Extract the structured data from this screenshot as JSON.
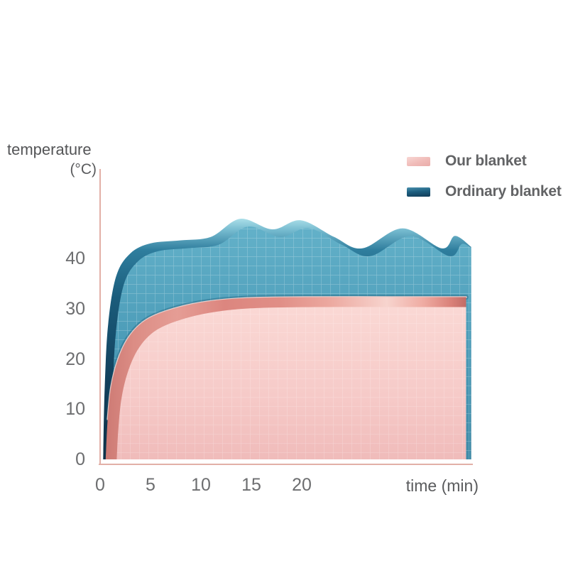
{
  "axes": {
    "y": {
      "title": "temperature",
      "unit": "(°C)",
      "ticks": [
        0,
        10,
        20,
        30,
        40
      ]
    },
    "x": {
      "label": "time (min)",
      "ticks": [
        0,
        5,
        10,
        15,
        20
      ]
    }
  },
  "legend": {
    "items": [
      {
        "label": "Our blanket",
        "color": "#f2c1be"
      },
      {
        "label": "Ordinary blanket",
        "color": "#1d5f80"
      }
    ]
  },
  "colors": {
    "axis_line": "#e2b0a7",
    "ordinary_body": "#4d9db9",
    "ordinary_edge": "#1a5c7b",
    "our_body": "#f6cac8",
    "our_edge": "#d8837d"
  },
  "chart_data": {
    "type": "area",
    "title": "",
    "xlabel": "time (min)",
    "ylabel": "temperature (°C)",
    "xlim": [
      0,
      37
    ],
    "ylim": [
      0,
      50
    ],
    "x_ticks": [
      0,
      5,
      10,
      15,
      20
    ],
    "y_ticks": [
      0,
      10,
      20,
      30,
      40
    ],
    "grid": true,
    "legend_position": "top-right",
    "series": [
      {
        "name": "Our blanket",
        "color": "#f6cac8",
        "edge_color": "#d8837d",
        "points": [
          [
            0.55,
            0
          ],
          [
            0.75,
            8
          ],
          [
            1.1,
            14.5
          ],
          [
            1.8,
            20
          ],
          [
            2.9,
            24.5
          ],
          [
            4.6,
            27.8
          ],
          [
            7.3,
            30
          ],
          [
            10.6,
            31.4
          ],
          [
            14.5,
            32.1
          ],
          [
            21,
            32.3
          ],
          [
            29,
            32.3
          ],
          [
            36.3,
            32.3
          ]
        ]
      },
      {
        "name": "Ordinary blanket",
        "color": "#4d9db9",
        "edge_color": "#1a5c7b",
        "points": [
          [
            0.3,
            0
          ],
          [
            0.45,
            14
          ],
          [
            0.8,
            27
          ],
          [
            1.6,
            36.5
          ],
          [
            3,
            41
          ],
          [
            5,
            43
          ],
          [
            8,
            43.6
          ],
          [
            11,
            44.3
          ],
          [
            13.9,
            47.9
          ],
          [
            17.1,
            45.8
          ],
          [
            19.9,
            47.6
          ],
          [
            23.2,
            44.3
          ],
          [
            26,
            42
          ],
          [
            30,
            46
          ],
          [
            33.9,
            42
          ],
          [
            35.2,
            44.5
          ],
          [
            36.8,
            42.3
          ]
        ]
      }
    ]
  }
}
